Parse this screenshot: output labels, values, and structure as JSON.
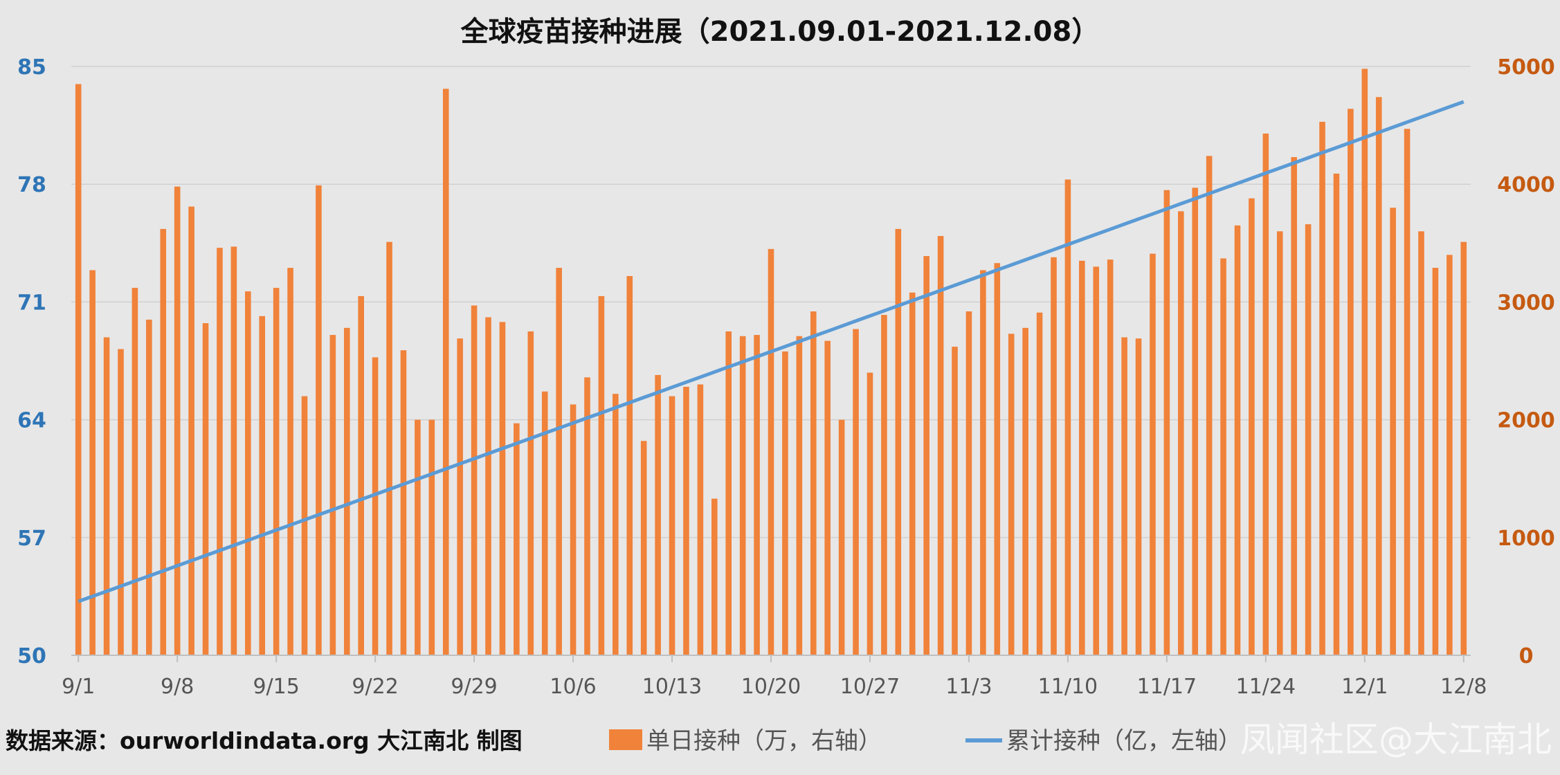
{
  "source_note": "数据来源：ourworldindata.org   大江南北 制图",
  "watermark": "凤闻社区@大江南北",
  "chart_data": {
    "type": "bar",
    "title": "全球疫苗接种进展（2021.09.01-2021.12.08）",
    "colors": {
      "bar": "#f0823a",
      "line": "#5b9bd5",
      "left_axis": "#2e75b6",
      "right_axis": "#c55a11",
      "grid": "#d0d0d0"
    },
    "legend": {
      "position": "bottom"
    },
    "grid": true,
    "left_axis": {
      "ticks": [
        "85",
        "78",
        "71",
        "64",
        "57",
        "50"
      ],
      "range": [
        50,
        85
      ]
    },
    "right_axis": {
      "ticks": [
        "5000",
        "4000",
        "3000",
        "2000",
        "1000",
        "0"
      ],
      "range": [
        0,
        5000
      ]
    },
    "x_tick_labels": [
      "9/1",
      "9/8",
      "9/15",
      "9/22",
      "9/29",
      "10/6",
      "10/13",
      "10/20",
      "10/27",
      "11/3",
      "11/10",
      "11/17",
      "11/24",
      "12/1",
      "12/8"
    ],
    "series": [
      {
        "name": "单日接种（万，右轴）",
        "kind": "bar",
        "axis": "right",
        "x": [
          "2021-09-01",
          "2021-09-02",
          "2021-09-03",
          "2021-09-04",
          "2021-09-05",
          "2021-09-06",
          "2021-09-07",
          "2021-09-08",
          "2021-09-09",
          "2021-09-10",
          "2021-09-11",
          "2021-09-12",
          "2021-09-13",
          "2021-09-14",
          "2021-09-15",
          "2021-09-16",
          "2021-09-17",
          "2021-09-18",
          "2021-09-19",
          "2021-09-20",
          "2021-09-21",
          "2021-09-22",
          "2021-09-23",
          "2021-09-24",
          "2021-09-25",
          "2021-09-26",
          "2021-09-27",
          "2021-09-28",
          "2021-09-29",
          "2021-09-30",
          "2021-10-01",
          "2021-10-02",
          "2021-10-03",
          "2021-10-04",
          "2021-10-05",
          "2021-10-06",
          "2021-10-07",
          "2021-10-08",
          "2021-10-09",
          "2021-10-10",
          "2021-10-11",
          "2021-10-12",
          "2021-10-13",
          "2021-10-14",
          "2021-10-15",
          "2021-10-16",
          "2021-10-17",
          "2021-10-18",
          "2021-10-19",
          "2021-10-20",
          "2021-10-21",
          "2021-10-22",
          "2021-10-23",
          "2021-10-24",
          "2021-10-25",
          "2021-10-26",
          "2021-10-27",
          "2021-10-28",
          "2021-10-29",
          "2021-10-30",
          "2021-10-31",
          "2021-11-01",
          "2021-11-02",
          "2021-11-03",
          "2021-11-04",
          "2021-11-05",
          "2021-11-06",
          "2021-11-07",
          "2021-11-08",
          "2021-11-09",
          "2021-11-10",
          "2021-11-11",
          "2021-11-12",
          "2021-11-13",
          "2021-11-14",
          "2021-11-15",
          "2021-11-16",
          "2021-11-17",
          "2021-11-18",
          "2021-11-19",
          "2021-11-20",
          "2021-11-21",
          "2021-11-22",
          "2021-11-23",
          "2021-11-24",
          "2021-11-25",
          "2021-11-26",
          "2021-11-27",
          "2021-11-28",
          "2021-11-29",
          "2021-11-30",
          "2021-12-01",
          "2021-12-02",
          "2021-12-03",
          "2021-12-04",
          "2021-12-05",
          "2021-12-06",
          "2021-12-07",
          "2021-12-08"
        ],
        "values": [
          4850,
          3270,
          2700,
          2600,
          3120,
          2850,
          3620,
          3980,
          3810,
          2820,
          3460,
          3470,
          3090,
          2880,
          3120,
          3290,
          2200,
          3990,
          2720,
          2780,
          3050,
          2530,
          3510,
          2590,
          2000,
          2000,
          4810,
          2690,
          2970,
          2870,
          2830,
          1970,
          2750,
          2240,
          3290,
          2130,
          2360,
          3050,
          2220,
          3220,
          1820,
          2380,
          2200,
          2280,
          2300,
          1330,
          2750,
          2710,
          2720,
          3450,
          2580,
          2710,
          2920,
          2670,
          2000,
          2770,
          2400,
          2890,
          3620,
          3080,
          3390,
          3560,
          2620,
          2920,
          3270,
          3330,
          2730,
          2780,
          2910,
          3380,
          4040,
          3350,
          3300,
          3360,
          2700,
          2690,
          3410,
          3950,
          3770,
          3970,
          4240,
          3370,
          3650,
          3880,
          4430,
          3600,
          4230,
          3660,
          4530,
          4090,
          4640,
          4980,
          4740,
          3800,
          4470,
          3600,
          3290,
          3400,
          3510
        ]
      },
      {
        "name": "累计接种（亿，左轴）",
        "kind": "line",
        "axis": "left",
        "x": [
          "2021-09-01",
          "2021-12-08"
        ],
        "values": [
          53.2,
          82.9
        ]
      }
    ]
  }
}
